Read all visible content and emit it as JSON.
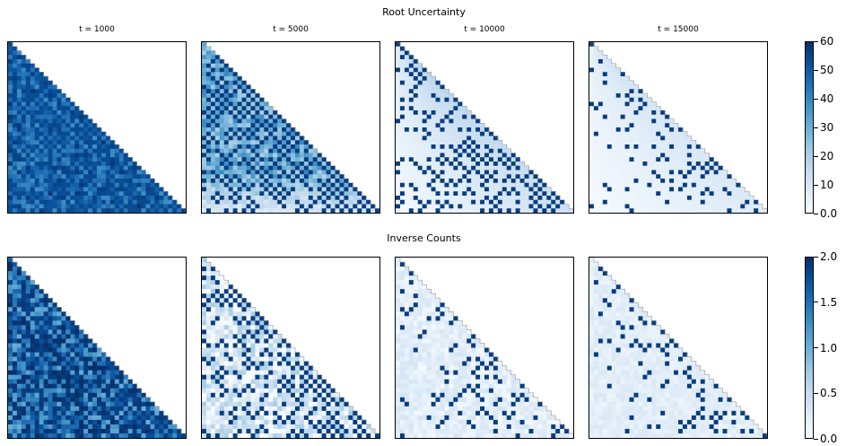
{
  "chart_data": [
    {
      "type": "heatmap",
      "title": "Root Uncertainty",
      "panels": [
        {
          "title": "t = 1000",
          "base": 48,
          "variation": 10,
          "checker": 0.35
        },
        {
          "title": "t = 5000",
          "base": 30,
          "variation": 10,
          "checker": 0.45
        },
        {
          "title": "t = 10000",
          "base": 8,
          "variation": 6,
          "checker": 0.3
        },
        {
          "title": "t = 15000",
          "base": 5,
          "variation": 1,
          "checker": 0.05
        }
      ],
      "colorbar": {
        "min": 0,
        "max": 60,
        "ticks": [
          "0.0",
          "10",
          "20",
          "30",
          "40",
          "50",
          "60"
        ]
      },
      "colormap": "Blues"
    },
    {
      "type": "heatmap",
      "title": "Inverse Counts",
      "panels": [
        {
          "title": "",
          "base": 1.6,
          "variation": 0.6,
          "checker": 0.3
        },
        {
          "title": "",
          "base": 0.3,
          "variation": 0.4,
          "checker": 0.3
        },
        {
          "title": "",
          "base": 0.2,
          "variation": 0.15,
          "checker": 0.05
        },
        {
          "title": "",
          "base": 0.2,
          "variation": 0.1,
          "checker": 0.05
        }
      ],
      "colorbar": {
        "min": 0,
        "max": 2.0,
        "ticks": [
          "0.0",
          "0.5",
          "1.0",
          "1.5",
          "2.0"
        ]
      },
      "colormap": "Blues"
    }
  ]
}
